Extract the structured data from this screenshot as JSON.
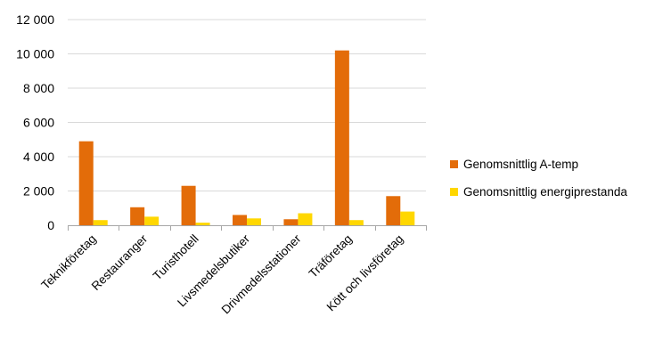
{
  "chart_data": {
    "type": "bar",
    "title": "",
    "xlabel": "",
    "ylabel": "",
    "ylim": [
      0,
      12000
    ],
    "yticks": [
      0,
      2000,
      4000,
      6000,
      8000,
      10000,
      12000
    ],
    "ytick_labels": [
      "0",
      "2 000",
      "4 000",
      "6 000",
      "8 000",
      "10 000",
      "12 000"
    ],
    "grid": true,
    "legend_position": "right",
    "categories": [
      "Teknikföretag",
      "Restauranger",
      "Turisthotell",
      "Livsmedelsbutiker",
      "Drivmedelsstationer",
      "Träföretag",
      "Kött och livsföretag"
    ],
    "series": [
      {
        "name": "Genomsnittlig A-temp",
        "color": "#E36C09",
        "values": [
          4900,
          1050,
          2300,
          600,
          350,
          10200,
          1700
        ]
      },
      {
        "name": "Genomsnittlig energiprestanda",
        "color": "#FFD700",
        "values": [
          300,
          500,
          150,
          400,
          700,
          300,
          800
        ]
      }
    ]
  }
}
